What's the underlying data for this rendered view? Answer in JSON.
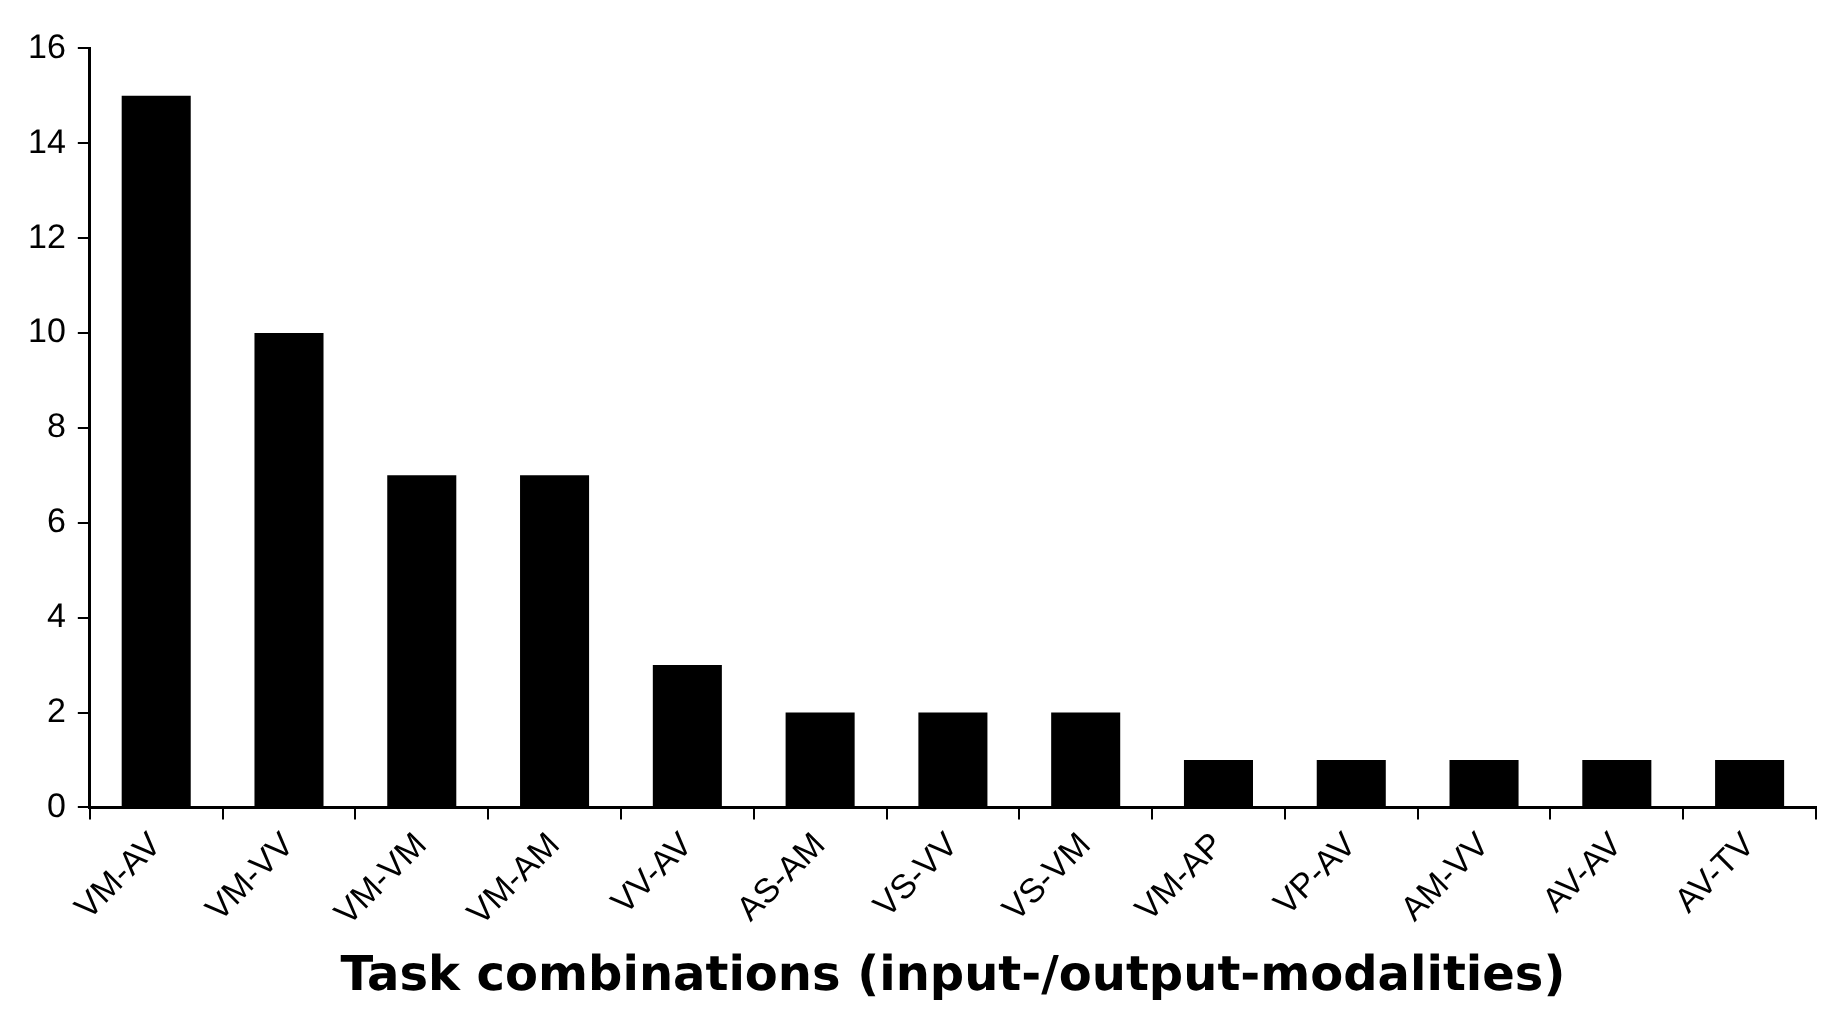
{
  "chart_data": {
    "type": "bar",
    "xlabel": "Task combinations (input-/output-modalities)",
    "categories": [
      "VM-AV",
      "VM-VV",
      "VM-VM",
      "VM-AM",
      "VV-AV",
      "AS-AM",
      "VS-VV",
      "VS-VM",
      "VM-AP",
      "VP-AV",
      "AM-VV",
      "AV-AV",
      "AV-TV"
    ],
    "values": [
      15,
      10,
      7,
      7,
      3,
      2,
      2,
      2,
      1,
      1,
      1,
      1,
      1
    ],
    "color": "#000000",
    "ylim": [
      0,
      16
    ],
    "yticks": [
      0,
      2,
      4,
      6,
      8,
      10,
      12,
      14,
      16
    ],
    "grid": false
  }
}
